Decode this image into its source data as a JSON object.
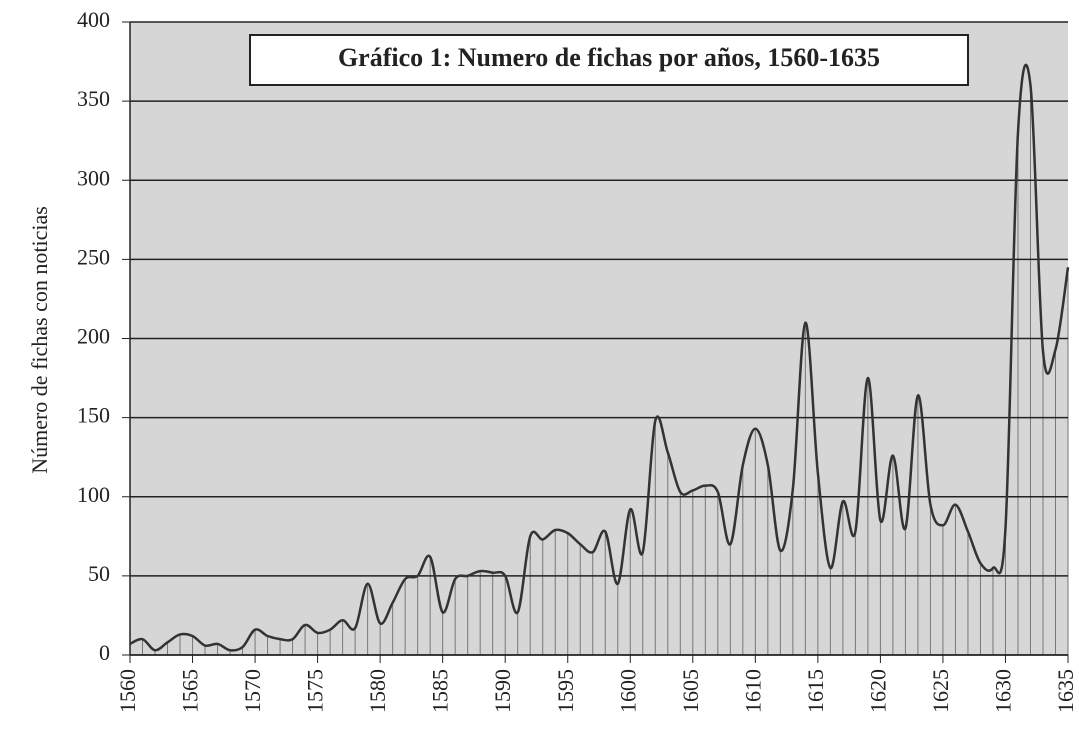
{
  "chart_data": {
    "type": "line",
    "title": "Gráfico 1: Numero de fichas por años, 1560-1635",
    "y_label": "Número de fichas con noticias",
    "x": [
      1560,
      1561,
      1562,
      1563,
      1564,
      1565,
      1566,
      1567,
      1568,
      1569,
      1570,
      1571,
      1572,
      1573,
      1574,
      1575,
      1576,
      1577,
      1578,
      1579,
      1580,
      1581,
      1582,
      1583,
      1584,
      1585,
      1586,
      1587,
      1588,
      1589,
      1590,
      1591,
      1592,
      1593,
      1594,
      1595,
      1596,
      1597,
      1598,
      1599,
      1600,
      1601,
      1602,
      1603,
      1604,
      1605,
      1606,
      1607,
      1608,
      1609,
      1610,
      1611,
      1612,
      1613,
      1614,
      1615,
      1616,
      1617,
      1618,
      1619,
      1620,
      1621,
      1622,
      1623,
      1624,
      1625,
      1626,
      1627,
      1628,
      1629,
      1630,
      1631,
      1632,
      1633,
      1634,
      1635
    ],
    "values": [
      7,
      10,
      3,
      8,
      13,
      12,
      6,
      7,
      3,
      5,
      16,
      12,
      10,
      10,
      19,
      14,
      16,
      22,
      17,
      45,
      20,
      33,
      48,
      50,
      62,
      27,
      48,
      50,
      53,
      52,
      50,
      27,
      75,
      73,
      79,
      77,
      70,
      65,
      78,
      45,
      92,
      65,
      148,
      128,
      103,
      104,
      107,
      103,
      70,
      120,
      143,
      120,
      66,
      105,
      210,
      115,
      55,
      97,
      78,
      175,
      85,
      126,
      80,
      164,
      95,
      82,
      95,
      78,
      58,
      55,
      80,
      330,
      360,
      192,
      193,
      245
    ],
    "color": "#333333",
    "xlim": [
      1560,
      1635
    ],
    "xticks": [
      1560,
      1565,
      1570,
      1575,
      1580,
      1585,
      1590,
      1595,
      1600,
      1605,
      1610,
      1615,
      1620,
      1625,
      1630,
      1635
    ],
    "ylim": [
      0,
      400
    ],
    "yticks": [
      0,
      50,
      100,
      150,
      200,
      250,
      300,
      350,
      400
    ],
    "grid": true
  }
}
